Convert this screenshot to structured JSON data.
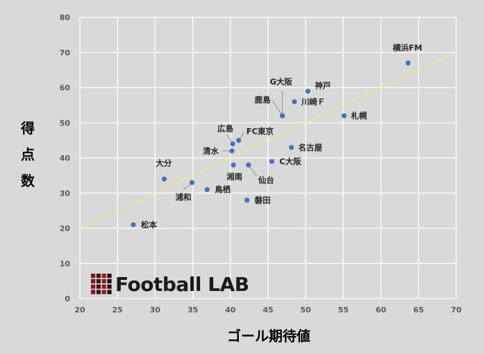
{
  "chart_data": {
    "type": "scatter",
    "xlabel": "ゴール期待値",
    "ylabel": "得点数",
    "xlim": [
      20,
      70
    ],
    "ylim": [
      0,
      80
    ],
    "xticks": [
      "20",
      "25",
      "30",
      "35",
      "40",
      "45",
      "50",
      "55",
      "60",
      "65",
      "70"
    ],
    "yticks": [
      "0",
      "10",
      "20",
      "30",
      "40",
      "50",
      "60",
      "70",
      "80"
    ],
    "grid": true,
    "points": [
      {
        "label": "横浜FM",
        "x": 63.6,
        "y": 67
      },
      {
        "label": "神戸",
        "x": 50.3,
        "y": 59
      },
      {
        "label": "川崎Ｆ",
        "x": 48.5,
        "y": 56
      },
      {
        "label": "G大阪",
        "x": 46.9,
        "y": 52
      },
      {
        "label": "鹿島",
        "x": 46.9,
        "y": 52
      },
      {
        "label": "札幌",
        "x": 55.1,
        "y": 52
      },
      {
        "label": "FC東京",
        "x": 41.1,
        "y": 45
      },
      {
        "label": "広島",
        "x": 40.3,
        "y": 44
      },
      {
        "label": "清水",
        "x": 40.2,
        "y": 42
      },
      {
        "label": "名古屋",
        "x": 48.1,
        "y": 43
      },
      {
        "label": "C大阪",
        "x": 45.5,
        "y": 39
      },
      {
        "label": "湘南",
        "x": 40.4,
        "y": 38
      },
      {
        "label": "仙台",
        "x": 42.4,
        "y": 38
      },
      {
        "label": "大分",
        "x": 31.2,
        "y": 34
      },
      {
        "label": "浦和",
        "x": 34.9,
        "y": 33
      },
      {
        "label": "鳥栖",
        "x": 36.9,
        "y": 31
      },
      {
        "label": "磐田",
        "x": 42.2,
        "y": 28
      },
      {
        "label": "松本",
        "x": 27.1,
        "y": 21
      }
    ],
    "trendline": {
      "x": [
        20,
        70
      ],
      "y": [
        20,
        70
      ]
    },
    "colors": {
      "point": "#4a6fbd",
      "trendline": "#f2f26a",
      "grid": "#ffffff",
      "background": "#d9d9d9"
    }
  },
  "logo": {
    "text": "Football LAB"
  }
}
